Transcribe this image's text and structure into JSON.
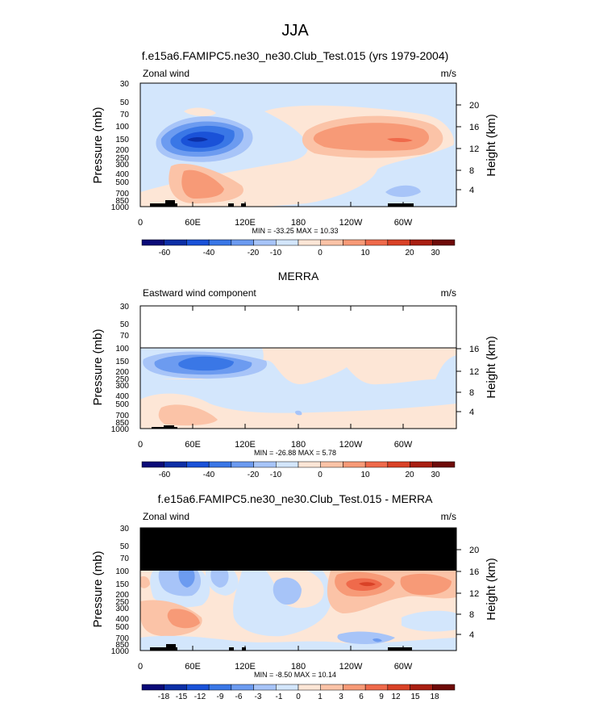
{
  "figure_title": "JJA",
  "colormaps": {
    "abs": [
      "#0a0a78",
      "#0c2fa6",
      "#1a52d8",
      "#3a77e6",
      "#6c9bf0",
      "#a7c4f8",
      "#d3e6fc",
      "#fde6d6",
      "#fbc3a7",
      "#f79a77",
      "#ef6a4b",
      "#d94227",
      "#a91f12",
      "#6e0a08"
    ],
    "diff": [
      "#0a0a78",
      "#0c2fa6",
      "#1a52d8",
      "#3a77e6",
      "#6c9bf0",
      "#a7c4f8",
      "#d3e6fc",
      "#fde6d6",
      "#fbc3a7",
      "#f79a77",
      "#ef6a4b",
      "#d94227",
      "#a91f12",
      "#6e0a08"
    ]
  },
  "chart_data": [
    {
      "type": "heatmap",
      "title": "f.e15a6.FAMIPC5.ne30_ne30.Club_Test.015 (yrs 1979-2004)",
      "left_label": "Zonal wind",
      "right_label": "m/s",
      "ylabel": "Pressure (mb)",
      "ylabel_right": "Height (km)",
      "x_ticks": [
        "0",
        "60E",
        "120E",
        "180",
        "120W",
        "60W"
      ],
      "y_ticks": [
        "30",
        "50",
        "70",
        "100",
        "150",
        "200",
        "250",
        "300",
        "400",
        "500",
        "700",
        "850",
        "1000"
      ],
      "height_ticks": [
        "20",
        "16",
        "12",
        "8",
        "4"
      ],
      "stats": "MIN = -33.25  MAX = 10.33",
      "colorbar_labels": [
        "-60",
        "-40",
        "-20",
        "-10",
        "0",
        "10",
        "20",
        "30"
      ],
      "missing_above_hpa": null
    },
    {
      "type": "heatmap",
      "title": "MERRA",
      "left_label": "Eastward wind component",
      "right_label": "m/s",
      "ylabel": "Pressure (mb)",
      "ylabel_right": "Height (km)",
      "x_ticks": [
        "0",
        "60E",
        "120E",
        "180",
        "120W",
        "60W"
      ],
      "y_ticks": [
        "30",
        "50",
        "70",
        "100",
        "150",
        "200",
        "250",
        "300",
        "400",
        "500",
        "700",
        "850",
        "1000"
      ],
      "height_ticks": [
        "16",
        "12",
        "8",
        "4"
      ],
      "stats": "MIN = -26.88  MAX =  5.78",
      "colorbar_labels": [
        "-60",
        "-40",
        "-20",
        "-10",
        "0",
        "10",
        "20",
        "30"
      ],
      "missing_above_hpa": 100
    },
    {
      "type": "heatmap",
      "title": "f.e15a6.FAMIPC5.ne30_ne30.Club_Test.015 - MERRA",
      "left_label": "Zonal wind",
      "right_label": "m/s",
      "ylabel": "Pressure (mb)",
      "ylabel_right": "Height (km)",
      "x_ticks": [
        "0",
        "60E",
        "120E",
        "180",
        "120W",
        "60W"
      ],
      "y_ticks": [
        "30",
        "50",
        "70",
        "100",
        "150",
        "200",
        "250",
        "300",
        "400",
        "500",
        "700",
        "850",
        "1000"
      ],
      "height_ticks": [
        "20",
        "16",
        "12",
        "8",
        "4"
      ],
      "stats": "MIN = -8.50  MAX = 10.14",
      "colorbar_labels": [
        "-18",
        "-15",
        "-12",
        "-9",
        "-6",
        "-3",
        "-1",
        "0",
        "1",
        "3",
        "6",
        "9",
        "12",
        "15",
        "18"
      ],
      "missing_above_hpa": 100
    }
  ]
}
